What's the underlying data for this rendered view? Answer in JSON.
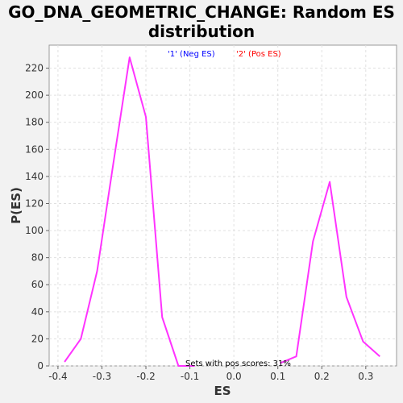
{
  "chart_data": {
    "type": "line",
    "title_line1": "GO_DNA_GEOMETRIC_CHANGE: Random ES",
    "title_line2": "distribution",
    "xlabel": "ES",
    "ylabel": "P(ES)",
    "xlim": [
      -0.42,
      0.37
    ],
    "ylim": [
      0,
      237
    ],
    "x_ticks": [
      -0.4,
      -0.3,
      -0.2,
      -0.1,
      0.0,
      0.1,
      0.2,
      0.3
    ],
    "x_tick_labels": [
      "-0.4",
      "-0.3",
      "-0.2",
      "-0.1",
      "0.0",
      "0.1",
      "0.2",
      "0.3"
    ],
    "y_ticks": [
      0,
      20,
      40,
      60,
      80,
      100,
      120,
      140,
      160,
      180,
      200,
      220
    ],
    "y_tick_labels": [
      "0",
      "20",
      "40",
      "60",
      "80",
      "100",
      "120",
      "140",
      "160",
      "180",
      "200",
      "220"
    ],
    "grid": true,
    "legend": [
      {
        "label": "'1' (Neg ES)",
        "color": "#0000ff"
      },
      {
        "label": "'2' (Pos ES)",
        "color": "#ff0000"
      }
    ],
    "annotation": "Sets with pos scores: 31%",
    "series": [
      {
        "color": "#ff33ff",
        "x": [
          -0.385,
          -0.348,
          -0.311,
          -0.274,
          -0.237,
          -0.2,
          -0.163,
          -0.126,
          -0.089
        ],
        "y": [
          3,
          20,
          70,
          150,
          228,
          184,
          36,
          0,
          0
        ]
      },
      {
        "color": "#ff33ff",
        "x": [
          0.105,
          0.142,
          0.18,
          0.218,
          0.256,
          0.294,
          0.332
        ],
        "y": [
          2,
          7,
          92,
          136,
          51,
          18,
          7
        ]
      }
    ]
  }
}
